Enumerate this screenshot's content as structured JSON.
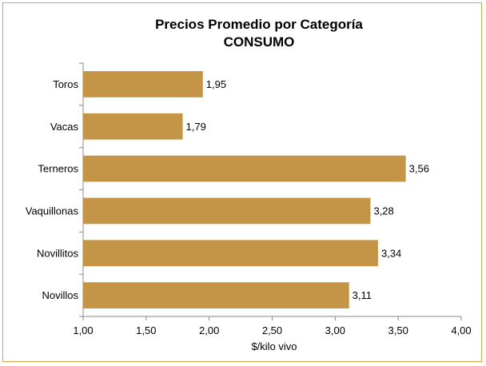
{
  "chart_data": {
    "type": "bar",
    "orientation": "horizontal",
    "title": "Precios Promedio por Categoría",
    "subtitle": "CONSUMO",
    "xlabel": "$/kilo vivo",
    "ylabel": "",
    "categories": [
      "Toros",
      "Vacas",
      "Terneros",
      "Vaquillonas",
      "Novillitos",
      "Novillos"
    ],
    "values": [
      1.95,
      1.79,
      3.56,
      3.28,
      3.34,
      3.11
    ],
    "value_labels": [
      "1,95",
      "1,79",
      "3,56",
      "3,28",
      "3,34",
      "3,11"
    ],
    "xlim": [
      1.0,
      4.0
    ],
    "xticks": [
      1.0,
      1.5,
      2.0,
      2.5,
      3.0,
      3.5,
      4.0
    ],
    "xtick_labels": [
      "1,00",
      "1,50",
      "2,00",
      "2,50",
      "3,00",
      "3,50",
      "4,00"
    ],
    "grid": false,
    "legend": "none",
    "bar_color": "#c49447",
    "border_color": "#d8a24a"
  }
}
